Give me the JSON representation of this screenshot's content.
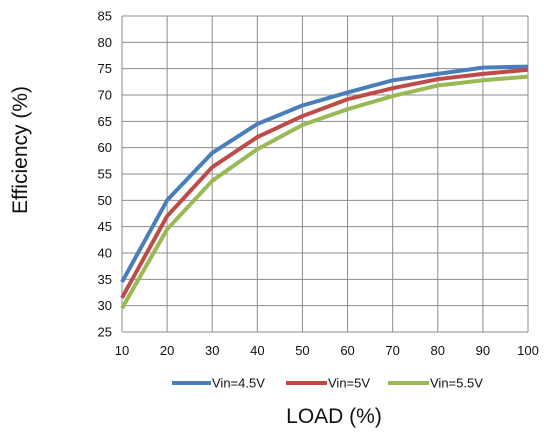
{
  "chart_data": {
    "type": "line",
    "title": "",
    "xlabel": "LOAD (%)",
    "ylabel": "Efficiency (%)",
    "x": [
      10,
      20,
      30,
      40,
      50,
      60,
      70,
      80,
      90,
      100
    ],
    "xlim": [
      10,
      100
    ],
    "ylim": [
      25,
      85
    ],
    "xticks": [
      10,
      20,
      30,
      40,
      50,
      60,
      70,
      80,
      90,
      100
    ],
    "yticks": [
      25,
      30,
      35,
      40,
      45,
      50,
      55,
      60,
      65,
      70,
      75,
      80,
      85
    ],
    "grid": true,
    "legend_position": "bottom",
    "series": [
      {
        "name": "Vin=4.5V",
        "color": "#4a7ebb",
        "values": [
          34.5,
          50.0,
          59.0,
          64.5,
          68.0,
          70.5,
          72.8,
          74.0,
          75.2,
          75.4
        ]
      },
      {
        "name": "Vin=5V",
        "color": "#be4b48",
        "values": [
          31.5,
          47.0,
          56.3,
          62.0,
          66.0,
          69.2,
          71.3,
          73.0,
          74.0,
          74.8
        ]
      },
      {
        "name": "Vin=5.5V",
        "color": "#98b954",
        "values": [
          29.5,
          44.5,
          53.7,
          59.7,
          64.3,
          67.3,
          69.8,
          71.8,
          72.8,
          73.5
        ]
      }
    ]
  }
}
